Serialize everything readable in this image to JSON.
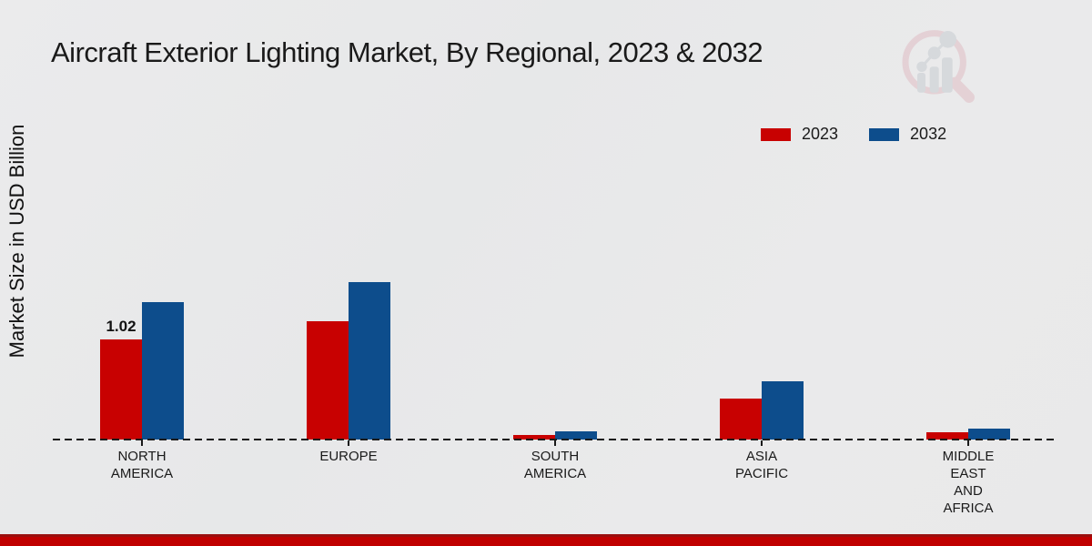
{
  "page": {
    "title": "Aircraft Exterior Lighting Market, By Regional, 2023 & 2032",
    "ylabel": "Market Size in USD Billion"
  },
  "legend": {
    "items": [
      {
        "label": "2023",
        "color": "#c80101"
      },
      {
        "label": "2032",
        "color": "#0d4d8c"
      }
    ]
  },
  "chart_data": {
    "type": "bar",
    "title": "Aircraft Exterior Lighting Market, By Regional, 2023 & 2032",
    "xlabel": "",
    "ylabel": "Market Size in USD Billion",
    "categories": [
      "NORTH AMERICA",
      "EUROPE",
      "SOUTH AMERICA",
      "ASIA PACIFIC",
      "MIDDLE EAST AND AFRICA"
    ],
    "category_lines": [
      [
        "NORTH",
        "AMERICA"
      ],
      [
        "EUROPE"
      ],
      [
        "SOUTH",
        "AMERICA"
      ],
      [
        "ASIA",
        "PACIFIC"
      ],
      [
        "MIDDLE",
        "EAST",
        "AND",
        "AFRICA"
      ]
    ],
    "series": [
      {
        "name": "2023",
        "color": "#c80101",
        "values": [
          1.02,
          1.2,
          0.05,
          0.42,
          0.07
        ]
      },
      {
        "name": "2032",
        "color": "#0d4d8c",
        "values": [
          1.4,
          1.6,
          0.08,
          0.59,
          0.11
        ]
      }
    ],
    "annotations": [
      {
        "category_index": 0,
        "series_index": 0,
        "text": "1.02"
      }
    ],
    "ylim": [
      0,
      1.8
    ],
    "grid": false,
    "legend_position": "top-right",
    "baseline_style": "dashed"
  },
  "watermark": {
    "name": "magnifier-bar-chart-logo",
    "ring_color": "#ddb4bc",
    "glyph_color": "#bfc5cc"
  },
  "footer": {
    "bar_color": "#c00000",
    "bar_top_color": "#9a0f0f"
  }
}
